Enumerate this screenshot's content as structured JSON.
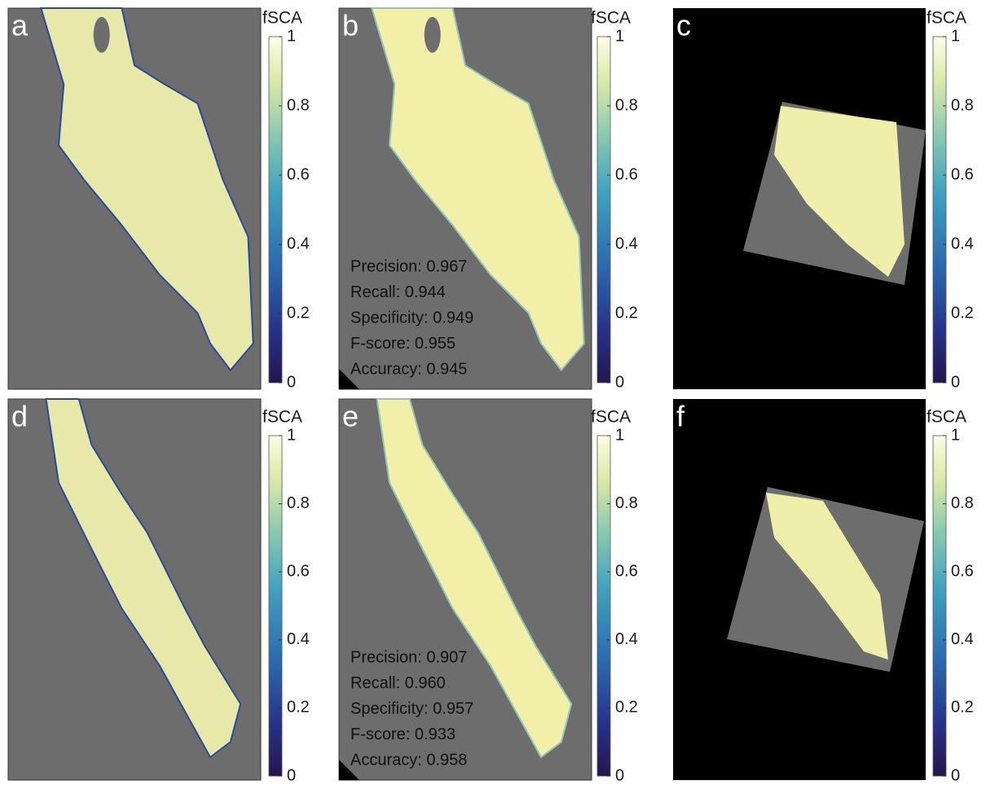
{
  "panels": [
    {
      "label": "a",
      "colorbar_label": "fSCA",
      "colorbar_lim": [
        0,
        1
      ],
      "colorbar_ticks": [
        0,
        0.2,
        0.4,
        0.6,
        0.8,
        1
      ]
    },
    {
      "label": "b",
      "colorbar_label": "fSCA",
      "colorbar_lim": [
        0,
        1
      ],
      "colorbar_ticks": [
        0,
        0.2,
        0.4,
        0.6,
        0.8,
        1
      ],
      "metrics": [
        "Precision: 0.967",
        "Recall: 0.944",
        "Specificity: 0.949",
        "F-score: 0.955",
        "Accuracy: 0.945"
      ]
    },
    {
      "label": "c",
      "colorbar_label": "fSCA",
      "colorbar_lim": [
        0,
        1
      ],
      "colorbar_ticks": [
        0,
        0.2,
        0.4,
        0.6,
        0.8,
        1
      ]
    },
    {
      "label": "d",
      "colorbar_label": "fSCA",
      "colorbar_lim": [
        0,
        1
      ],
      "colorbar_ticks": [
        0,
        0.2,
        0.4,
        0.6,
        0.8,
        1
      ]
    },
    {
      "label": "e",
      "colorbar_label": "fSCA",
      "colorbar_lim": [
        0,
        1
      ],
      "colorbar_ticks": [
        0,
        0.2,
        0.4,
        0.6,
        0.8,
        1
      ],
      "metrics": [
        "Precision: 0.907",
        "Recall: 0.960",
        "Specificity: 0.957",
        "F-score: 0.933",
        "Accuracy: 0.958"
      ]
    },
    {
      "label": "f",
      "colorbar_label": "fSCA",
      "colorbar_lim": [
        0,
        1
      ],
      "colorbar_ticks": [
        0,
        0.2,
        0.4,
        0.6,
        0.8,
        1
      ]
    }
  ]
}
